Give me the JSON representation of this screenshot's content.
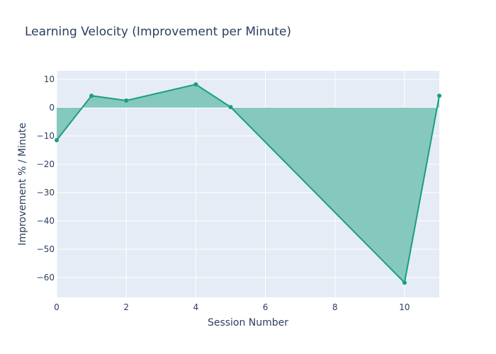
{
  "chart_data": {
    "type": "area",
    "title": "Learning Velocity (Improvement per Minute)",
    "xlabel": "Session Number",
    "ylabel": "Improvement % / Minute",
    "xlim": [
      0,
      11
    ],
    "ylim": [
      -67,
      13
    ],
    "xticks": [
      0,
      2,
      4,
      6,
      8,
      10
    ],
    "yticks": [
      10,
      0,
      -10,
      -20,
      -30,
      -40,
      -50,
      -60
    ],
    "grid": true,
    "legend": "none",
    "colors": {
      "line": "#1a9e7e",
      "fill": "#7fc6bb",
      "plot_bg": "#e5ecf6",
      "grid": "#ffffff"
    },
    "series": [
      {
        "x": [
          0,
          1,
          2,
          4,
          5,
          10,
          11
        ],
        "y": [
          -11.5,
          4.2,
          2.5,
          8.2,
          0.2,
          -61.8,
          4.2
        ]
      }
    ]
  }
}
